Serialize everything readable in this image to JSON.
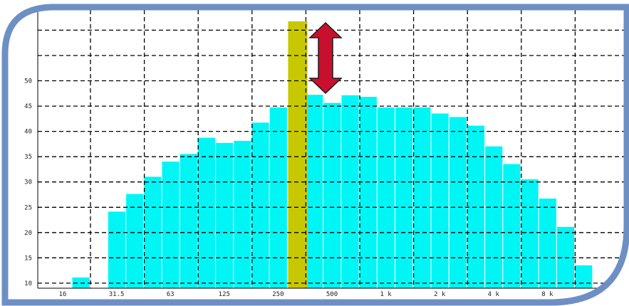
{
  "colors": {
    "bars": "#00f5f5",
    "bar_separator": "#ffffff",
    "highlight_band": "#c8c800",
    "arrow_fill": "#c8102e",
    "arrow_stroke": "#1a1a1a",
    "frame": "#6e8fc4",
    "grid": "#000000"
  },
  "chart_data": {
    "type": "bar",
    "title": "",
    "xlabel": "",
    "ylabel": "",
    "ylim": [
      9,
      64
    ],
    "y_ticks": [
      "10",
      "15",
      "20",
      "25",
      "30",
      "35",
      "40",
      "45",
      "50"
    ],
    "x_ticks": [
      "16",
      "31.5",
      "63",
      "125",
      "250",
      "500",
      "1 k",
      "2 k",
      "4 k",
      "8 k"
    ],
    "grid": true,
    "legend": "none",
    "bands_per_octave": 3,
    "series": [
      {
        "values": [
          11.2,
          null,
          24.2,
          27.7,
          31.1,
          34.1,
          35.6,
          38.8,
          37.8,
          38.2,
          41.8,
          44.8,
          null,
          47.3,
          45.7,
          47.2,
          46.9,
          44.8,
          44.8,
          44.8,
          43.6,
          42.9,
          41.2,
          37.1,
          33.6,
          30.6,
          26.8,
          21.2,
          13.6
        ]
      }
    ],
    "highlight_band_index": 12,
    "annotation": "double-headed-arrow"
  }
}
